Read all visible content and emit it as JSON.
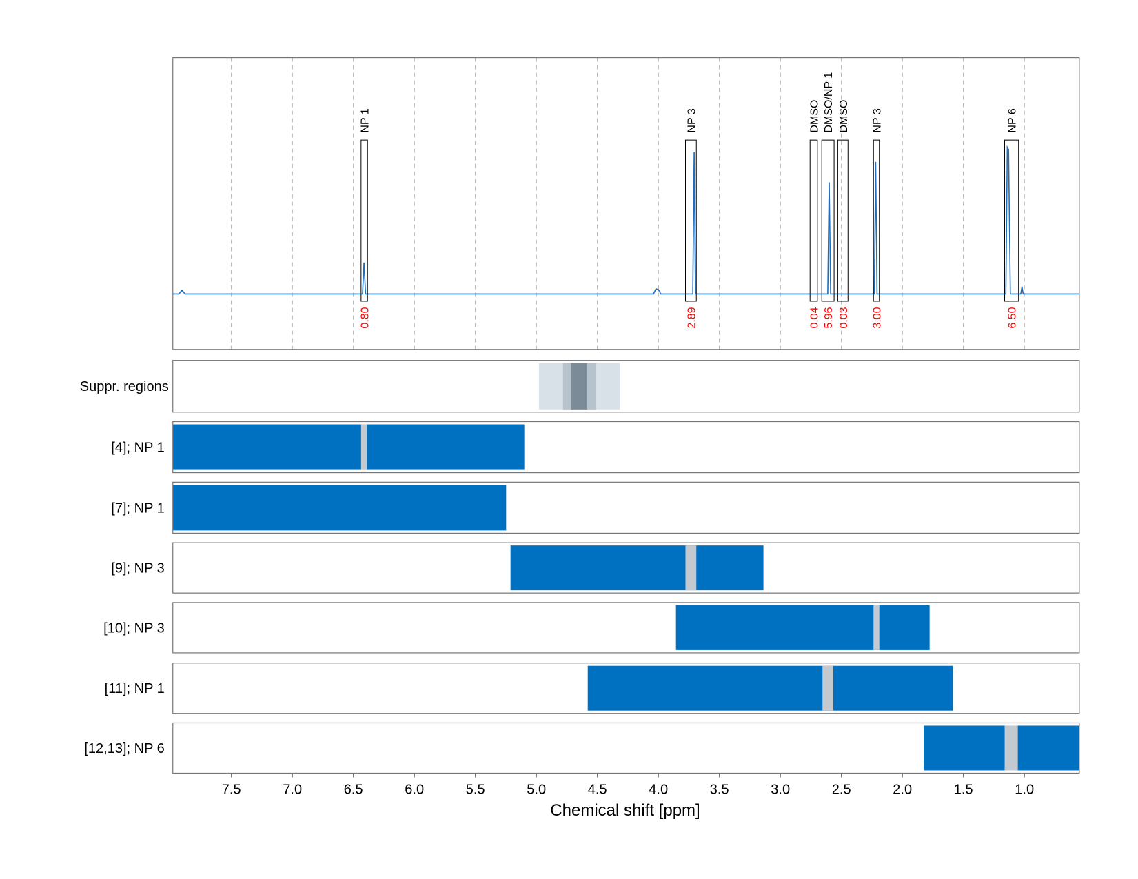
{
  "chart_data": {
    "type": "nmr",
    "xlabel": "Chemical shift [ppm]",
    "xlim": [
      7.98,
      0.55
    ],
    "xticks": [
      7.5,
      {
        "value": 7,
        "label": "7.0"
      },
      6.5,
      {
        "value": 6,
        "label": "6.0"
      },
      5.5,
      {
        "value": 5,
        "label": "5.0"
      },
      4.5,
      {
        "value": 4,
        "label": "4.0"
      },
      3.5,
      {
        "value": 3,
        "label": "3.0"
      },
      2.5,
      {
        "value": 2,
        "label": "2.0"
      },
      1.5,
      {
        "value": 1,
        "label": "1.0"
      }
    ],
    "ylim": [
      -0.38,
      1.62
    ],
    "grid": true,
    "spectrum": {
      "color": "#1f6fbd",
      "x": [
        7.98,
        7.93,
        7.905,
        7.88,
        6.425,
        6.413,
        6.4,
        4.04,
        4.02,
        4.0,
        3.98,
        3.718,
        3.707,
        3.696,
        2.612,
        2.6,
        2.588,
        2.23,
        2.219,
        2.208,
        1.152,
        1.14,
        1.13,
        1.115,
        1.03,
        1.02,
        1.01,
        0.55
      ],
      "y": [
        0,
        0,
        0.025,
        0,
        0,
        0.215,
        0,
        0,
        0.035,
        0.03,
        0,
        0,
        0.975,
        0,
        0,
        0.765,
        0,
        0,
        0.905,
        0,
        0,
        1.005,
        0.99,
        0,
        0,
        0.05,
        0,
        0
      ]
    },
    "integral_color": "#ff0000",
    "peaks": [
      {
        "label": "NP 1",
        "range": [
          6.437,
          6.384
        ],
        "value": 0.8,
        "value_label": "0.80"
      },
      {
        "label": "NP 3",
        "range": [
          3.778,
          3.689
        ],
        "value": 2.89,
        "value_label": "2.89"
      },
      {
        "label": "DMSO",
        "range": [
          2.757,
          2.697
        ],
        "value": 0.04,
        "value_label": "0.04"
      },
      {
        "label": "DMSO/NP 1",
        "range": [
          2.661,
          2.56
        ],
        "value": 5.96,
        "value_label": "5.96"
      },
      {
        "label": "DMSO",
        "range": [
          2.53,
          2.446
        ],
        "value": 0.03,
        "value_label": "0.03"
      },
      {
        "label": "NP 3",
        "range": [
          2.237,
          2.189
        ],
        "value": 3,
        "value_label": "3.00"
      },
      {
        "label": "NP 6",
        "range": [
          1.162,
          1.048
        ],
        "value": 6.5,
        "value_label": "6.50"
      }
    ],
    "suppression": {
      "label": "Suppr. regions",
      "bands": [
        {
          "range": [
            4.979,
            4.316
          ],
          "color": "#d9e1e8"
        },
        {
          "range": [
            4.782,
            4.513
          ],
          "color": "#b6c2cc"
        },
        {
          "range": [
            4.716,
            4.585
          ],
          "color": "#7b8b97"
        }
      ]
    },
    "bar_color": "#0070c0",
    "gap_color": "#c3c9cf",
    "rows": [
      {
        "label": "[4]; NP 1",
        "range": [
          7.98,
          5.099
        ],
        "gaps": [
          [
            6.437,
            6.389
          ]
        ]
      },
      {
        "label": "[7]; NP 1",
        "range": [
          7.98,
          5.248
        ],
        "gaps": []
      },
      {
        "label": "[9]; NP 3",
        "range": [
          5.212,
          3.139
        ],
        "gaps": [
          [
            3.778,
            3.689
          ]
        ]
      },
      {
        "label": "[10]; NP 3",
        "range": [
          3.856,
          1.777
        ],
        "gaps": [
          [
            2.237,
            2.189
          ]
        ]
      },
      {
        "label": "[11]; NP 1",
        "range": [
          4.579,
          1.586
        ],
        "gaps": [
          [
            2.655,
            2.566
          ]
        ]
      },
      {
        "label": "[12,13]; NP 6",
        "range": [
          1.825,
          0.55
        ],
        "gaps": [
          [
            1.162,
            1.054
          ]
        ]
      }
    ]
  }
}
